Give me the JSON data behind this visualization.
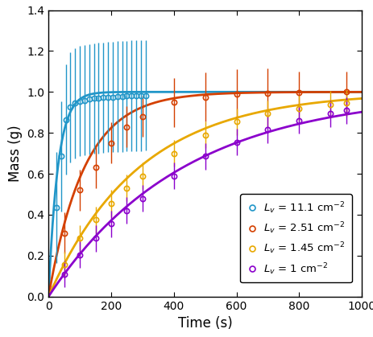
{
  "xlabel": "Time (s)",
  "ylabel": "Mass (g)",
  "xlim": [
    0,
    1000
  ],
  "ylim": [
    0,
    1.4
  ],
  "yticks": [
    0,
    0.2,
    0.4,
    0.6,
    0.8,
    1.0,
    1.2,
    1.4
  ],
  "xticks": [
    0,
    200,
    400,
    600,
    800,
    1000
  ],
  "series": [
    {
      "label": "$L_v$ = 11.1 cm$^{-2}$",
      "color": "#2196C8",
      "M_inf": 1.0,
      "tau": 30,
      "data_x": [
        25,
        40,
        55,
        70,
        85,
        100,
        115,
        130,
        145,
        160,
        175,
        190,
        205,
        220,
        235,
        250,
        265,
        280,
        295,
        310
      ],
      "data_y": [
        0.435,
        0.685,
        0.865,
        0.925,
        0.945,
        0.955,
        0.96,
        0.965,
        0.968,
        0.97,
        0.972,
        0.975,
        0.975,
        0.978,
        0.978,
        0.98,
        0.981,
        0.982,
        0.982,
        0.983
      ],
      "err_y": [
        0.27,
        0.27,
        0.27,
        0.27,
        0.27,
        0.27,
        0.27,
        0.27,
        0.27,
        0.27,
        0.27,
        0.27,
        0.27,
        0.27,
        0.27,
        0.27,
        0.27,
        0.27,
        0.27,
        0.27
      ]
    },
    {
      "label": "$L_v$ = 2.51 cm$^{-2}$",
      "color": "#D44000",
      "M_inf": 1.0,
      "tau": 115,
      "data_x": [
        50,
        100,
        150,
        200,
        250,
        300,
        400,
        500,
        600,
        700,
        800,
        950
      ],
      "data_y": [
        0.31,
        0.52,
        0.63,
        0.75,
        0.83,
        0.88,
        0.95,
        0.975,
        0.99,
        0.995,
        0.998,
        1.0
      ],
      "err_y": [
        0.1,
        0.1,
        0.1,
        0.1,
        0.1,
        0.1,
        0.12,
        0.12,
        0.12,
        0.12,
        0.1,
        0.1
      ]
    },
    {
      "label": "$L_v$ = 1.45 cm$^{-2}$",
      "color": "#E8A800",
      "M_inf": 1.0,
      "tau": 290,
      "data_x": [
        50,
        100,
        150,
        200,
        250,
        300,
        400,
        500,
        600,
        700,
        800,
        900,
        950
      ],
      "data_y": [
        0.155,
        0.285,
        0.375,
        0.455,
        0.53,
        0.59,
        0.7,
        0.79,
        0.855,
        0.895,
        0.92,
        0.94,
        0.945
      ],
      "err_y": [
        0.065,
        0.065,
        0.065,
        0.065,
        0.065,
        0.065,
        0.065,
        0.065,
        0.065,
        0.065,
        0.065,
        0.065,
        0.065
      ]
    },
    {
      "label": "$L_v$ = 1 cm$^{-2}$",
      "color": "#8B00CC",
      "M_inf": 1.0,
      "tau": 430,
      "data_x": [
        50,
        100,
        150,
        200,
        250,
        300,
        400,
        500,
        600,
        700,
        800,
        900,
        950
      ],
      "data_y": [
        0.11,
        0.205,
        0.285,
        0.355,
        0.42,
        0.48,
        0.59,
        0.685,
        0.755,
        0.815,
        0.86,
        0.895,
        0.91
      ],
      "err_y": [
        0.065,
        0.065,
        0.065,
        0.065,
        0.065,
        0.065,
        0.065,
        0.065,
        0.065,
        0.065,
        0.065,
        0.065,
        0.065
      ]
    }
  ]
}
